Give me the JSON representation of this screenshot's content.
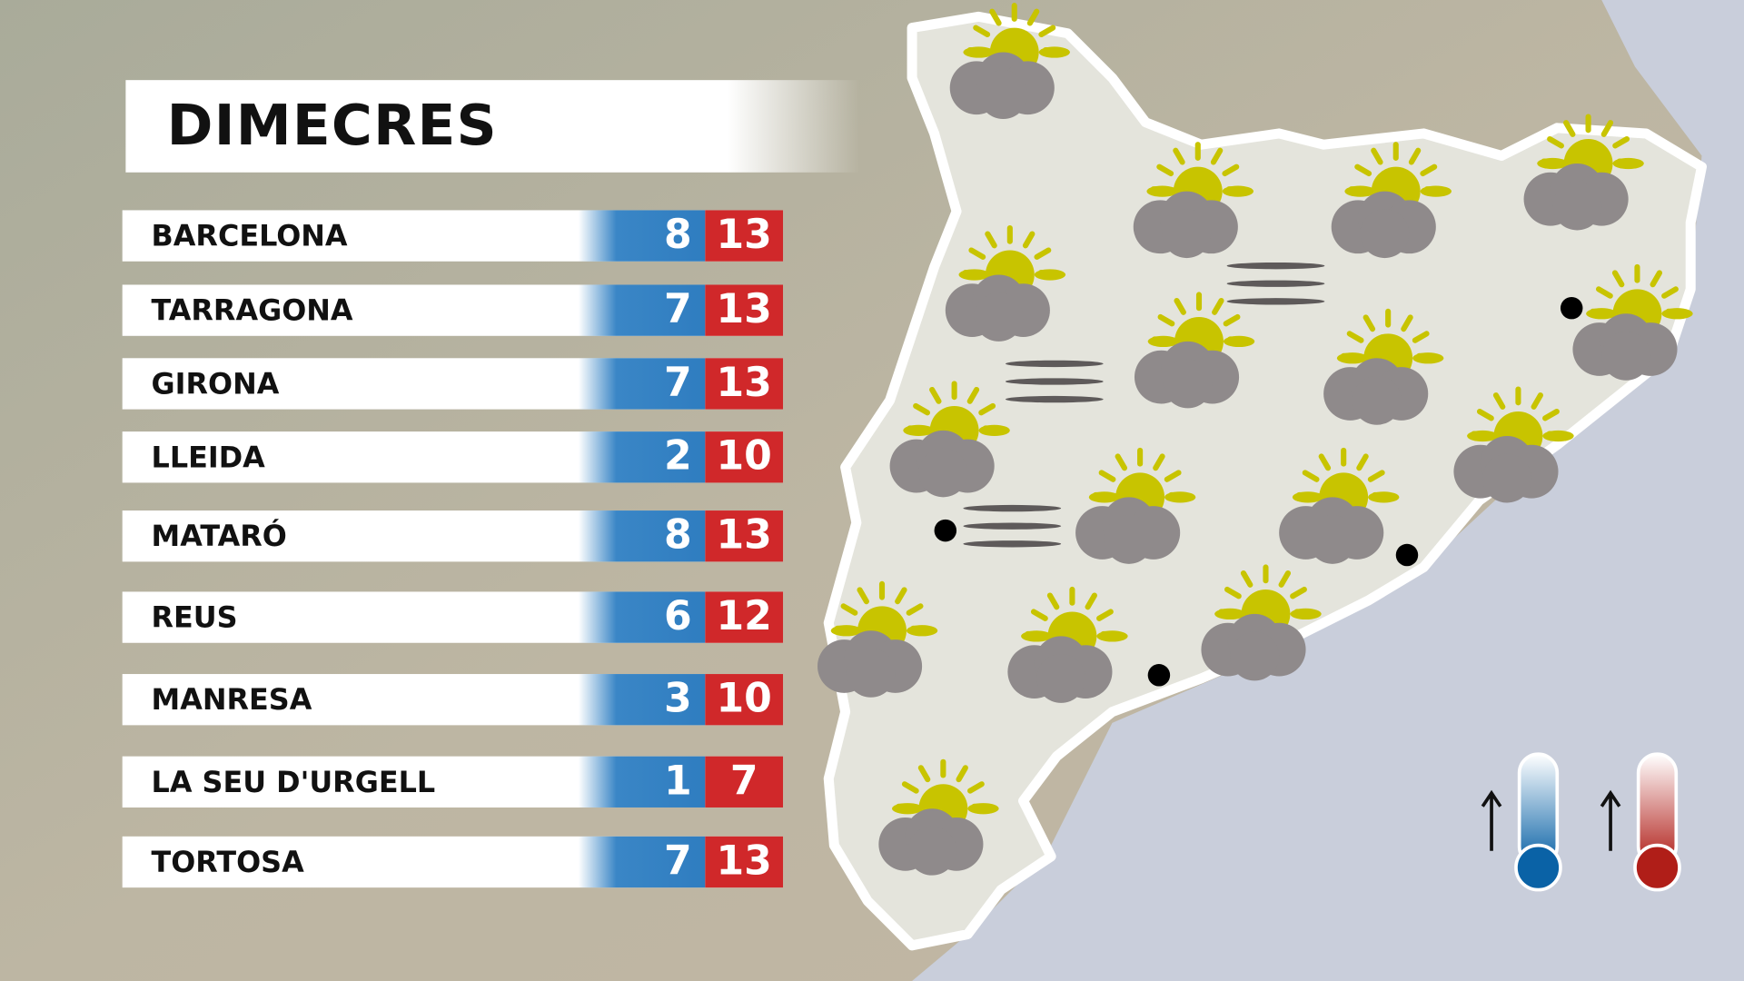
{
  "title": "DIMECRES",
  "cities": [
    {
      "name": "BARCELONA",
      "min": "8",
      "max": "13"
    },
    {
      "name": "TARRAGONA",
      "min": "7",
      "max": "13"
    },
    {
      "name": "GIRONA",
      "min": "7",
      "max": "13"
    },
    {
      "name": "LLEIDA",
      "min": "2",
      "max": "10"
    },
    {
      "name": "MATARÓ",
      "min": "8",
      "max": "13"
    },
    {
      "name": "REUS",
      "min": "6",
      "max": "12"
    },
    {
      "name": "MANRESA",
      "min": "3",
      "max": "10"
    },
    {
      "name": "LA SEU D'URGELL",
      "min": "1",
      "max": "7"
    },
    {
      "name": "TORTOSA",
      "min": "7",
      "max": "13"
    }
  ],
  "map_icons": {
    "sun_cloud_count": 16,
    "fog_count": 3,
    "city_dot_count": 4
  },
  "legend": {
    "min_icon": "thermometer-cold-icon",
    "max_icon": "thermometer-hot-icon"
  },
  "colors": {
    "min": "#2f7dc0",
    "max": "#d0282a",
    "sun": "#c8c400",
    "cloud": "#8f8a8b"
  }
}
